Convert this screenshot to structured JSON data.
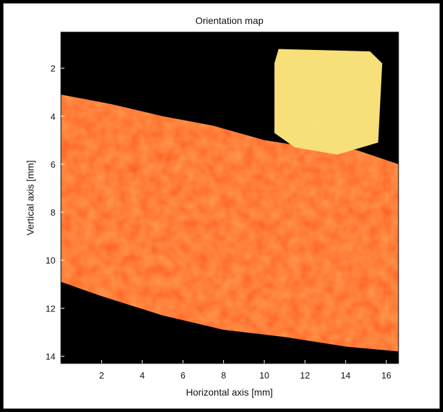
{
  "chart_data": {
    "type": "heatmap",
    "title": "Orientation map",
    "xlabel": "Horizontal axis [mm]",
    "ylabel": "Vertical axis [mm]",
    "xlim": [
      0,
      16.6
    ],
    "ylim": [
      0.5,
      14.3
    ],
    "y_reversed": true,
    "x_ticks": [
      2,
      4,
      6,
      8,
      10,
      12,
      14,
      16
    ],
    "y_ticks": [
      2,
      4,
      6,
      8,
      10,
      12,
      14
    ],
    "background_color": "#000000",
    "regions": [
      {
        "id": "lower-grain",
        "color": "#ff5a1f",
        "outline_mm": [
          [
            0,
            3.1
          ],
          [
            2.5,
            3.5
          ],
          [
            5,
            4.0
          ],
          [
            7.5,
            4.4
          ],
          [
            10,
            5.0
          ],
          [
            11.5,
            5.2
          ],
          [
            13,
            5.4
          ],
          [
            14.5,
            5.4
          ],
          [
            16.6,
            6.0
          ],
          [
            16.6,
            13.8
          ],
          [
            14,
            13.6
          ],
          [
            11,
            13.2
          ],
          [
            8,
            12.9
          ],
          [
            5,
            12.3
          ],
          [
            2,
            11.5
          ],
          [
            0,
            10.9
          ]
        ]
      },
      {
        "id": "upper-grain",
        "color": "#f5e07a",
        "outline_mm": [
          [
            10.7,
            1.2
          ],
          [
            15.2,
            1.3
          ],
          [
            15.8,
            1.8
          ],
          [
            15.6,
            5.1
          ],
          [
            13.6,
            5.6
          ],
          [
            11.5,
            5.3
          ],
          [
            10.5,
            4.7
          ],
          [
            10.5,
            1.8
          ]
        ]
      }
    ]
  }
}
